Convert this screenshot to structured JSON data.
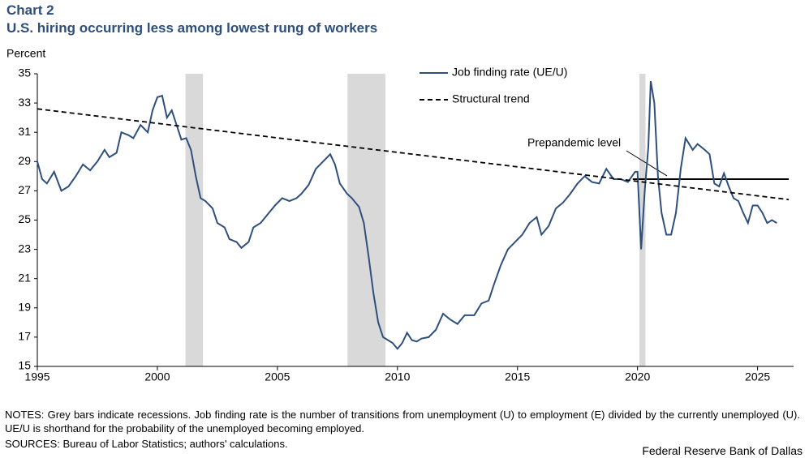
{
  "chart_data": {
    "type": "line",
    "label": "Chart 2",
    "title": "U.S. hiring occurring less among lowest rung of workers",
    "ylabel": "Percent",
    "xlim": [
      1995,
      2026.5
    ],
    "xticks": [
      1995,
      2000,
      2005,
      2010,
      2015,
      2020,
      2025
    ],
    "ylim": [
      15,
      35
    ],
    "yticks": [
      15,
      17,
      19,
      21,
      23,
      25,
      27,
      29,
      31,
      33,
      35
    ],
    "recessions": [
      [
        2001.17,
        2001.9
      ],
      [
        2007.92,
        2009.5
      ],
      [
        2020.08,
        2020.33
      ]
    ],
    "recession_color": "#d9d9d9",
    "series": [
      {
        "name": "Job finding rate (UE/U)",
        "color": "#2e4f7c",
        "dash": false,
        "x": [
          1995.0,
          1995.2,
          1995.4,
          1995.7,
          1996.0,
          1996.3,
          1996.6,
          1996.9,
          1997.2,
          1997.5,
          1997.8,
          1998.0,
          1998.3,
          1998.5,
          1998.8,
          1999.0,
          1999.3,
          1999.6,
          1999.8,
          2000.0,
          2000.2,
          2000.4,
          2000.6,
          2000.8,
          2001.0,
          2001.2,
          2001.4,
          2001.6,
          2001.8,
          2002.0,
          2002.3,
          2002.5,
          2002.8,
          2003.0,
          2003.3,
          2003.5,
          2003.8,
          2004.0,
          2004.3,
          2004.6,
          2004.9,
          2005.2,
          2005.5,
          2005.8,
          2006.0,
          2006.3,
          2006.6,
          2006.9,
          2007.2,
          2007.4,
          2007.6,
          2007.9,
          2008.1,
          2008.4,
          2008.6,
          2008.8,
          2009.0,
          2009.2,
          2009.4,
          2009.6,
          2009.8,
          2010.0,
          2010.2,
          2010.4,
          2010.6,
          2010.8,
          2011.0,
          2011.3,
          2011.6,
          2011.9,
          2012.2,
          2012.5,
          2012.8,
          2013.2,
          2013.5,
          2013.8,
          2014.0,
          2014.3,
          2014.6,
          2014.9,
          2015.2,
          2015.5,
          2015.8,
          2016.0,
          2016.3,
          2016.6,
          2016.9,
          2017.2,
          2017.5,
          2017.8,
          2018.1,
          2018.4,
          2018.7,
          2019.0,
          2019.3,
          2019.6,
          2019.9,
          2020.0,
          2020.15,
          2020.3,
          2020.45,
          2020.55,
          2020.7,
          2020.85,
          2021.0,
          2021.2,
          2021.4,
          2021.6,
          2021.8,
          2022.0,
          2022.3,
          2022.5,
          2022.8,
          2023.0,
          2023.2,
          2023.4,
          2023.6,
          2023.8,
          2024.0,
          2024.2,
          2024.4,
          2024.6,
          2024.8,
          2025.0,
          2025.2,
          2025.4,
          2025.6,
          2025.8
        ],
        "values": [
          29.0,
          27.8,
          27.5,
          28.3,
          27.0,
          27.3,
          28.0,
          28.8,
          28.4,
          29.0,
          29.8,
          29.3,
          29.6,
          31.0,
          30.8,
          30.6,
          31.5,
          31.0,
          32.5,
          33.4,
          33.5,
          32.0,
          32.5,
          31.5,
          30.5,
          30.6,
          29.8,
          28.0,
          26.5,
          26.3,
          25.8,
          24.8,
          24.5,
          23.7,
          23.5,
          23.1,
          23.5,
          24.5,
          24.8,
          25.4,
          26.0,
          26.5,
          26.3,
          26.5,
          26.8,
          27.4,
          28.5,
          29.0,
          29.5,
          28.8,
          27.5,
          26.8,
          26.5,
          25.9,
          24.8,
          22.5,
          20.0,
          18.0,
          17.0,
          16.8,
          16.6,
          16.2,
          16.6,
          17.3,
          16.8,
          16.7,
          16.9,
          17.0,
          17.5,
          18.6,
          18.2,
          17.9,
          18.5,
          18.5,
          19.3,
          19.5,
          20.5,
          21.9,
          23.0,
          23.5,
          24.0,
          24.8,
          25.2,
          24.0,
          24.6,
          25.8,
          26.2,
          26.8,
          27.5,
          28.0,
          27.6,
          27.5,
          28.5,
          27.8,
          27.8,
          27.6,
          28.3,
          28.3,
          23.0,
          27.0,
          30.0,
          34.5,
          33.0,
          28.0,
          25.5,
          24.0,
          24.0,
          25.5,
          28.5,
          30.6,
          29.8,
          30.2,
          29.8,
          29.5,
          27.5,
          27.3,
          28.2,
          27.3,
          26.5,
          26.3,
          25.5,
          24.8,
          26.0,
          26.0,
          25.5,
          24.8,
          25.0,
          24.8
        ]
      },
      {
        "name": "Structural trend",
        "color": "#000000",
        "dash": true,
        "x": [
          1995.0,
          2026.3
        ],
        "values": [
          32.6,
          26.4
        ]
      }
    ],
    "reference": {
      "label": "Prepandemic level",
      "value": 27.8,
      "x": [
        2019.8,
        2026.3
      ],
      "color": "#000000"
    },
    "notes": "NOTES: Grey bars indicate recessions. Job finding rate is the number of transitions from unemployment (U) to employment (E) divided by the currently unemployed (U). UE/U is shorthand for the probability of the unemployed becoming employed.",
    "sources": "SOURCES: Bureau of Labor Statistics; authors' calculations.",
    "credit": "Federal Reserve Bank of Dallas"
  }
}
